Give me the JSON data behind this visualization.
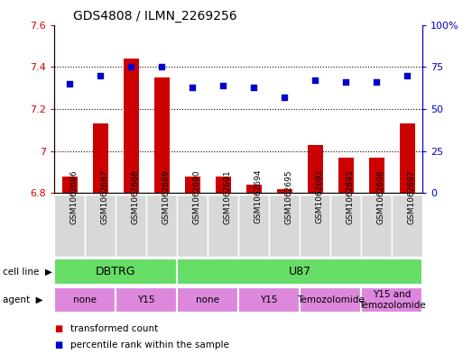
{
  "title": "GDS4808 / ILMN_2269256",
  "samples": [
    "GSM1062686",
    "GSM1062687",
    "GSM1062688",
    "GSM1062689",
    "GSM1062690",
    "GSM1062691",
    "GSM1062694",
    "GSM1062695",
    "GSM1062692",
    "GSM1062693",
    "GSM1062696",
    "GSM1062697"
  ],
  "transformed_count": [
    6.88,
    7.13,
    7.44,
    7.35,
    6.88,
    6.88,
    6.84,
    6.82,
    7.03,
    6.97,
    6.97,
    7.13
  ],
  "percentile_rank": [
    65,
    70,
    75,
    75,
    63,
    64,
    63,
    57,
    67,
    66,
    66,
    70
  ],
  "ylim_left": [
    6.8,
    7.6
  ],
  "ylim_right": [
    0,
    100
  ],
  "yticks_left": [
    6.8,
    7.0,
    7.2,
    7.4,
    7.6
  ],
  "yticks_right": [
    0,
    25,
    50,
    75,
    100
  ],
  "ytick_labels_left": [
    "6.8",
    "7",
    "7.2",
    "7.4",
    "7.6"
  ],
  "ytick_labels_right": [
    "0",
    "25",
    "50",
    "75",
    "100%"
  ],
  "bar_color": "#cc0000",
  "dot_color": "#0000cc",
  "cell_line_color": "#66dd66",
  "agent_color": "#dd88dd",
  "sample_bg_color": "#d8d8d8",
  "cell_line_groups": [
    {
      "label": "DBTRG",
      "start": 0,
      "end": 3
    },
    {
      "label": "U87",
      "start": 4,
      "end": 11
    }
  ],
  "agent_groups": [
    {
      "label": "none",
      "start": 0,
      "end": 1
    },
    {
      "label": "Y15",
      "start": 2,
      "end": 3
    },
    {
      "label": "none",
      "start": 4,
      "end": 5
    },
    {
      "label": "Y15",
      "start": 6,
      "end": 7
    },
    {
      "label": "Temozolomide",
      "start": 8,
      "end": 9
    },
    {
      "label": "Y15 and\nTemozolomide",
      "start": 10,
      "end": 11
    }
  ],
  "legend_items": [
    {
      "color": "#cc0000",
      "label": "transformed count"
    },
    {
      "color": "#0000cc",
      "label": "percentile rank within the sample"
    }
  ],
  "bar_width": 0.5,
  "dot_size": 18
}
